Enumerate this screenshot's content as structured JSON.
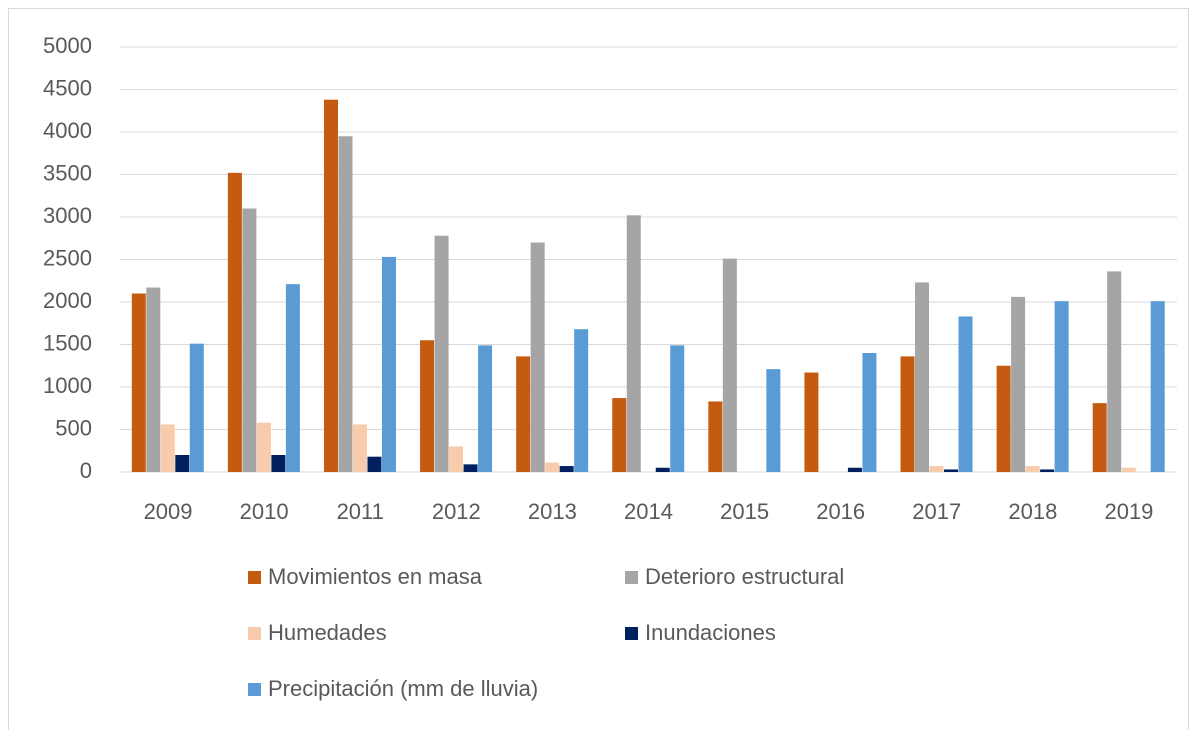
{
  "chart_data": {
    "type": "bar",
    "categories": [
      "2009",
      "2010",
      "2011",
      "2012",
      "2013",
      "2014",
      "2015",
      "2016",
      "2017",
      "2018",
      "2019"
    ],
    "series": [
      {
        "name": "Movimientos en masa",
        "color": "#c55a11",
        "values": [
          2100,
          3520,
          4380,
          1550,
          1360,
          870,
          830,
          1170,
          1360,
          1250,
          810
        ]
      },
      {
        "name": "Deterioro estructural",
        "color": "#a5a5a5",
        "values": [
          2170,
          3100,
          3950,
          2780,
          2700,
          3020,
          2510,
          0,
          2230,
          2060,
          2360
        ]
      },
      {
        "name": "Humedades",
        "color": "#f8cbad",
        "values": [
          560,
          580,
          560,
          300,
          110,
          0,
          0,
          0,
          70,
          70,
          50
        ]
      },
      {
        "name": "Inundaciones",
        "color": "#002060",
        "values": [
          200,
          200,
          180,
          90,
          70,
          50,
          0,
          50,
          30,
          30,
          0
        ]
      },
      {
        "name": "Precipitación (mm de lluvia)",
        "color": "#5b9bd5",
        "values": [
          1510,
          2210,
          2530,
          1490,
          1680,
          1490,
          1210,
          1400,
          1830,
          2010,
          2010
        ]
      }
    ],
    "ylim": [
      0,
      5000
    ],
    "yticks": [
      0,
      500,
      1000,
      1500,
      2000,
      2500,
      3000,
      3500,
      4000,
      4500,
      5000
    ],
    "grid": true,
    "legend": "bottom"
  }
}
